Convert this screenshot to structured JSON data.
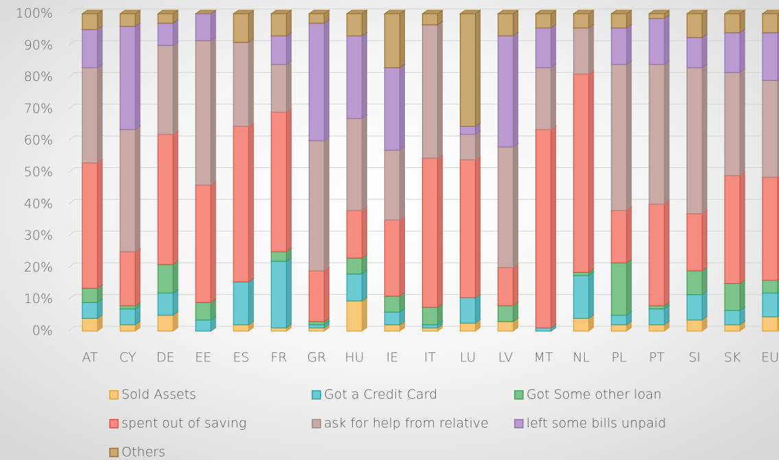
{
  "chart_data": {
    "type": "stacked_bar_100",
    "categories": [
      "AT",
      "CY",
      "DE",
      "EE",
      "ES",
      "FR",
      "GR",
      "HU",
      "IE",
      "IT",
      "LU",
      "LV",
      "MT",
      "NL",
      "PL",
      "PT",
      "SI",
      "SK",
      "EU"
    ],
    "series": [
      {
        "name": "Sold Assets",
        "color": "#f8c878",
        "values": [
          4,
          2,
          5,
          0,
          2,
          1,
          1,
          9.5,
          2,
          1,
          2.5,
          3,
          0,
          4,
          2,
          2,
          3.5,
          2,
          4.5
        ]
      },
      {
        "name": "Got a Credit Card",
        "color": "#6ccad2",
        "values": [
          5,
          5,
          7,
          3.5,
          13.5,
          21,
          1,
          8.5,
          4,
          1,
          8,
          0,
          1,
          13.5,
          3,
          5,
          8,
          4.5,
          7.5
        ]
      },
      {
        "name": "Got Some other loan",
        "color": "#7cc48c",
        "values": [
          4.5,
          1,
          9,
          5.5,
          0,
          3,
          1,
          5,
          5,
          5.5,
          0,
          5,
          0,
          1,
          16.5,
          1,
          7.5,
          8.5,
          4
        ]
      },
      {
        "name": "spent out of saving",
        "color": "#f48c82",
        "values": [
          39.5,
          17,
          41,
          37,
          49,
          44,
          16,
          15,
          24,
          47,
          43.5,
          12,
          62.5,
          62.5,
          16.5,
          32,
          18,
          34,
          32.5
        ]
      },
      {
        "name": "ask for help from relative",
        "color": "#c9aaa6",
        "values": [
          30,
          38.5,
          28,
          45.5,
          26.5,
          15,
          41,
          29,
          22,
          42,
          8,
          38,
          19.5,
          14.5,
          46,
          44,
          46,
          32.5,
          30.5
        ]
      },
      {
        "name": "left some bills unpaid",
        "color": "#b99bd2",
        "values": [
          12,
          32.5,
          7,
          8.5,
          0,
          9,
          37,
          26,
          26,
          0,
          2.5,
          35,
          12.5,
          0,
          11.5,
          14.5,
          9.5,
          12.5,
          15
        ]
      },
      {
        "name": "Others",
        "color": "#c9a872",
        "values": [
          5,
          4,
          3,
          0,
          9,
          7,
          3,
          7,
          17,
          3.5,
          35.5,
          7,
          4.5,
          4.5,
          4.5,
          1.5,
          7.5,
          6,
          6
        ]
      }
    ],
    "ylim": [
      0,
      100
    ],
    "yticks": [
      {
        "value": 0,
        "label": "0%"
      },
      {
        "value": 10,
        "label": "10%"
      },
      {
        "value": 20,
        "label": "20%"
      },
      {
        "value": 30,
        "label": "30%"
      },
      {
        "value": 40,
        "label": "40%"
      },
      {
        "value": 50,
        "label": "50%"
      },
      {
        "value": 60,
        "label": "60%"
      },
      {
        "value": 70,
        "label": "70%"
      },
      {
        "value": 80,
        "label": "80%"
      },
      {
        "value": 90,
        "label": "90%"
      },
      {
        "value": 100,
        "label": "100%"
      }
    ],
    "grid": true,
    "legend": "bottom"
  }
}
